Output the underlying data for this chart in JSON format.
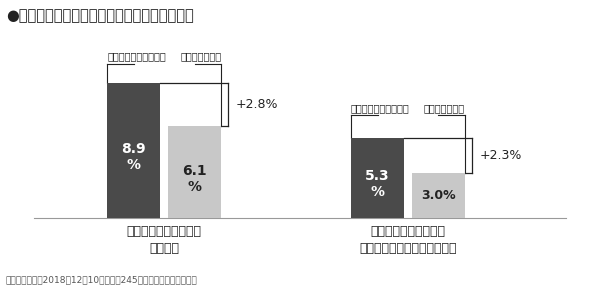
{
  "title": "●インベスターリターンと基準価額騰落率の差",
  "background_color": "#ffffff",
  "bar_dark_color": "#4a4a4a",
  "bar_light_color": "#c8c8c8",
  "fund1": {
    "name": "セゾン資産形成の達人\nファンド",
    "investor_return": 8.9,
    "benchmark_return": 6.1,
    "diff": "+2.8%",
    "label_investor": "インベスターリターン",
    "label_benchmark": "基準価額騰落率"
  },
  "fund2": {
    "name": "セゾン・バンガード・\nグローバルバランスファンド",
    "investor_return": 5.3,
    "benchmark_return": 3.0,
    "diff": "+2.3%",
    "label_investor": "インベスターリターン",
    "label_benchmark": "基準価額騰落率"
  },
  "footnote": "（設定開始から2018年12月10日まで年245営業日として年率換算）",
  "text_color": "#222222",
  "footnote_color": "#555555"
}
